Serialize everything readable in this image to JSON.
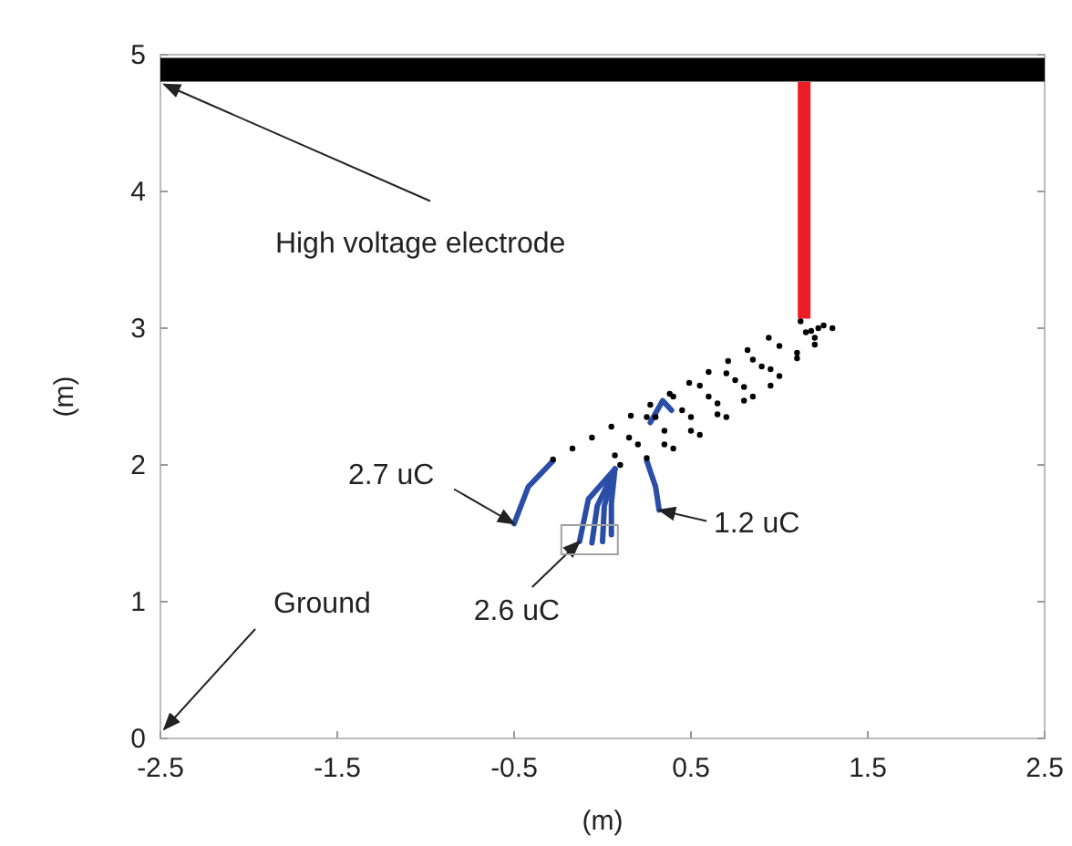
{
  "chart_data": {
    "type": "scatter",
    "xlabel": "(m)",
    "ylabel": "(m)",
    "xlim": [
      -2.5,
      2.5
    ],
    "xticks": [
      -2.5,
      -1.5,
      -0.5,
      0.5,
      1.5,
      2.5
    ],
    "ylim": [
      0,
      5
    ],
    "yticks": [
      0,
      1,
      2,
      3,
      4,
      5
    ],
    "grid": false,
    "ref_lines": [
      {
        "axis": "y",
        "value": 4.89,
        "color": "#000000"
      }
    ],
    "series": [
      {
        "type": "bar",
        "color": "#ee1c25",
        "x": [
          1.14
        ],
        "base": [
          3.07
        ],
        "values": [
          1.73
        ]
      },
      {
        "color": "#000000",
        "x": [
          -0.28,
          -0.17,
          -0.06,
          0.05,
          0.16,
          0.27,
          0.38,
          0.49,
          0.6,
          0.71,
          0.82,
          0.94,
          0.07,
          0.15,
          0.25,
          0.4,
          0.55,
          0.7,
          0.85,
          1.0,
          1.15,
          1.25,
          0.1,
          0.25,
          0.4,
          0.55,
          0.7,
          0.85,
          1.0,
          1.1,
          1.2,
          1.3,
          0.2,
          0.35,
          0.5,
          0.65,
          0.8,
          0.95,
          1.1,
          1.2,
          0.3,
          0.45,
          0.6,
          0.75,
          0.9,
          0.35,
          0.5,
          0.65,
          0.8,
          0.95,
          1.12,
          1.18,
          1.22
        ],
        "values": [
          2.04,
          2.12,
          2.2,
          2.28,
          2.36,
          2.44,
          2.52,
          2.6,
          2.68,
          2.76,
          2.84,
          2.93,
          2.07,
          2.2,
          2.35,
          2.5,
          2.58,
          2.67,
          2.77,
          2.87,
          2.97,
          3.02,
          2.0,
          2.05,
          2.12,
          2.22,
          2.35,
          2.5,
          2.65,
          2.78,
          2.88,
          3.0,
          2.15,
          2.25,
          2.35,
          2.45,
          2.57,
          2.7,
          2.82,
          2.93,
          2.35,
          2.4,
          2.5,
          2.62,
          2.72,
          2.15,
          2.25,
          2.37,
          2.47,
          2.58,
          3.05,
          2.98,
          3.0
        ]
      },
      {
        "type": "line",
        "color": "#2a4ea8",
        "x": [
          -0.5,
          -0.42,
          -0.28
        ],
        "values": [
          1.57,
          1.84,
          2.03
        ]
      },
      {
        "type": "line",
        "color": "#2a4ea8",
        "x": [
          0.25,
          0.3,
          0.32
        ],
        "values": [
          2.03,
          1.84,
          1.67
        ]
      },
      {
        "type": "line",
        "color": "#2a4ea8",
        "x": [
          0.27,
          0.34,
          0.39
        ],
        "values": [
          2.31,
          2.47,
          2.4
        ]
      },
      {
        "type": "line",
        "color": "#2a4ea8",
        "x": [
          0.07,
          -0.08,
          -0.13
        ],
        "values": [
          1.97,
          1.75,
          1.44
        ]
      },
      {
        "type": "line",
        "color": "#2a4ea8",
        "x": [
          0.07,
          -0.03,
          -0.06
        ],
        "values": [
          1.97,
          1.7,
          1.43
        ]
      },
      {
        "type": "line",
        "color": "#2a4ea8",
        "x": [
          0.07,
          0.01,
          0.0
        ],
        "values": [
          1.97,
          1.7,
          1.44
        ]
      },
      {
        "type": "line",
        "color": "#2a4ea8",
        "x": [
          0.07,
          0.05,
          0.05
        ],
        "values": [
          1.97,
          1.72,
          1.49
        ]
      }
    ],
    "annotations": [
      {
        "text": "High voltage electrode",
        "x": -2.48,
        "y": 4.89
      },
      "Ground",
      {
        "text": "2.7 uC",
        "x": -0.5,
        "y": 1.57
      },
      {
        "text": "2.6 uC",
        "x": -0.13,
        "y": 1.44
      },
      {
        "text": "1.2 uC",
        "x": 0.32,
        "y": 1.67
      }
    ]
  }
}
